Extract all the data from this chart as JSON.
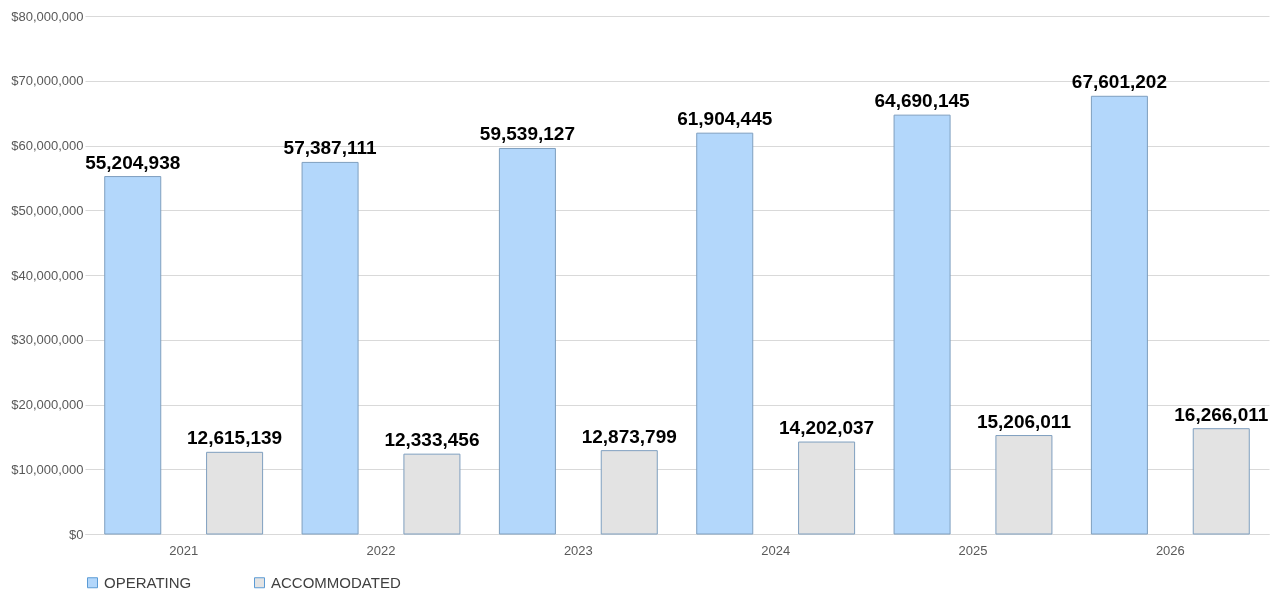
{
  "chart_data": {
    "type": "bar",
    "categories": [
      "2021",
      "2022",
      "2023",
      "2024",
      "2025",
      "2026"
    ],
    "series": [
      {
        "name": "OPERATING",
        "color": "#b3d7fb",
        "values": [
          55204938,
          57387111,
          59539127,
          61904445,
          64690145,
          67601202
        ],
        "value_labels": [
          "55,204,938",
          "57,387,111",
          "59,539,127",
          "61,904,445",
          "64,690,145",
          "67,601,202"
        ]
      },
      {
        "name": "ACCOMMODATED",
        "color": "#e3e3e3",
        "values": [
          12615139,
          12333456,
          12873799,
          14202037,
          15206011,
          16266011
        ],
        "value_labels": [
          "12,615,139",
          "12,333,456",
          "12,873,799",
          "14,202,037",
          "15,206,011",
          "16,266,011"
        ]
      }
    ],
    "ylim": [
      0,
      80000000
    ],
    "yticks": [
      {
        "value": 0,
        "label": "$0"
      },
      {
        "value": 10000000,
        "label": "$10,000,000"
      },
      {
        "value": 20000000,
        "label": "$20,000,000"
      },
      {
        "value": 30000000,
        "label": "$30,000,000"
      },
      {
        "value": 40000000,
        "label": "$40,000,000"
      },
      {
        "value": 50000000,
        "label": "$50,000,000"
      },
      {
        "value": 60000000,
        "label": "$60,000,000"
      },
      {
        "value": 70000000,
        "label": "$70,000,000"
      },
      {
        "value": 80000000,
        "label": "$80,000,000"
      }
    ],
    "grid": "y",
    "legend": "bottom"
  }
}
